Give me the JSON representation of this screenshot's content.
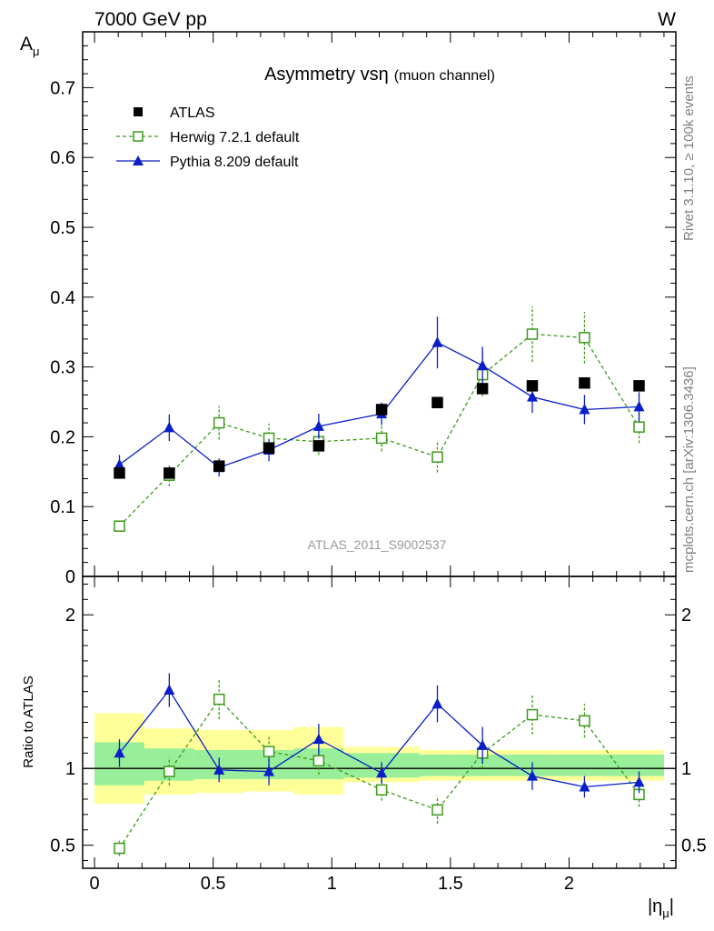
{
  "header": {
    "left": "7000 GeV pp",
    "right": "W"
  },
  "side_text": {
    "upper": "Rivet 3.1.10, ≥ 100k events",
    "lower": "mcplots.cern.ch [arXiv:1306.3436]"
  },
  "chart_data": [
    {
      "type": "scatter",
      "title": "Asymmetry vs",
      "title_symbol": "η",
      "title_suffix": "(muon channel)",
      "ylabel": "A",
      "ylabel_sub": "μ",
      "watermark": "ATLAS_2011_S9002537",
      "ylim": [
        0,
        0.78
      ],
      "xlim": [
        -0.05,
        2.45
      ],
      "yticks": [
        "0",
        "0.1",
        "0.2",
        "0.3",
        "0.4",
        "0.5",
        "0.6",
        "0.7"
      ],
      "legend_position": "top-left",
      "series": [
        {
          "name": "ATLAS",
          "style": "square-filled",
          "color": "#000000",
          "x": [
            0.105,
            0.315,
            0.525,
            0.735,
            0.945,
            1.21,
            1.445,
            1.635,
            1.845,
            2.065,
            2.295
          ],
          "y": [
            0.148,
            0.148,
            0.158,
            0.184,
            0.187,
            0.239,
            0.249,
            0.269,
            0.273,
            0.277,
            0.273
          ],
          "err": [
            0.005,
            0.005,
            0.005,
            0.005,
            0.006,
            0.006,
            0.005,
            0.005,
            0.006,
            0.006,
            0.006
          ]
        },
        {
          "name": "Herwig 7.2.1 default",
          "style": "square-open-dashed",
          "color": "#3a9a1a",
          "x": [
            0.105,
            0.315,
            0.525,
            0.735,
            0.945,
            1.21,
            1.445,
            1.635,
            1.845,
            2.065,
            2.295
          ],
          "y": [
            0.072,
            0.145,
            0.22,
            0.198,
            0.193,
            0.198,
            0.171,
            0.289,
            0.347,
            0.342,
            0.214
          ],
          "err": [
            0.004,
            0.016,
            0.024,
            0.021,
            0.019,
            0.019,
            0.022,
            0.031,
            0.04,
            0.037,
            0.023
          ]
        },
        {
          "name": "Pythia 8.209 default",
          "style": "triangle-filled",
          "color": "#0a1fc8",
          "x": [
            0.105,
            0.315,
            0.525,
            0.735,
            0.945,
            1.21,
            1.445,
            1.635,
            1.845,
            2.065,
            2.295
          ],
          "y": [
            0.16,
            0.213,
            0.156,
            0.181,
            0.215,
            0.233,
            0.335,
            0.302,
            0.257,
            0.239,
            0.243
          ],
          "err": [
            0.014,
            0.019,
            0.013,
            0.016,
            0.018,
            0.016,
            0.037,
            0.027,
            0.023,
            0.021,
            0.021
          ]
        }
      ]
    },
    {
      "type": "scatter",
      "ylabel": "Ratio to ATLAS",
      "xlabel": "|η",
      "xlabel_sub": "μ",
      "xlabel_end": "|",
      "ylim": [
        0.35,
        2.25
      ],
      "xlim": [
        -0.05,
        2.45
      ],
      "yticks": [
        {
          "v": 0.5,
          "label": "0.5"
        },
        {
          "v": 1,
          "label": "1"
        },
        {
          "v": 2,
          "label": "2"
        }
      ],
      "xticks": [
        {
          "v": 0,
          "label": "0"
        },
        {
          "v": 0.5,
          "label": "0.5"
        },
        {
          "v": 1,
          "label": "1"
        },
        {
          "v": 1.5,
          "label": "1.5"
        },
        {
          "v": 2,
          "label": "2"
        }
      ],
      "bands": {
        "edges": [
          0.0,
          0.21,
          0.42,
          0.63,
          0.84,
          1.05,
          1.37,
          1.52,
          1.74,
          1.95,
          2.18,
          2.4
        ],
        "inner": [
          [
            0.89,
            1.17
          ],
          [
            0.92,
            1.13
          ],
          [
            0.93,
            1.12
          ],
          [
            0.93,
            1.12
          ],
          [
            0.93,
            1.13
          ],
          [
            0.94,
            1.1
          ],
          [
            0.95,
            1.09
          ],
          [
            0.95,
            1.09
          ],
          [
            0.95,
            1.09
          ],
          [
            0.95,
            1.09
          ],
          [
            0.95,
            1.09
          ]
        ],
        "outer": [
          [
            0.77,
            1.36
          ],
          [
            0.83,
            1.26
          ],
          [
            0.84,
            1.25
          ],
          [
            0.85,
            1.25
          ],
          [
            0.83,
            1.27
          ],
          [
            0.91,
            1.14
          ],
          [
            0.92,
            1.12
          ],
          [
            0.92,
            1.12
          ],
          [
            0.92,
            1.12
          ],
          [
            0.92,
            1.12
          ],
          [
            0.92,
            1.12
          ]
        ],
        "inner_color": "#99ee99",
        "outer_color": "#ffff99"
      },
      "series": [
        {
          "name": "Herwig 7.2.1 default",
          "x": [
            0.105,
            0.315,
            0.525,
            0.735,
            0.945,
            1.21,
            1.445,
            1.635,
            1.845,
            2.065,
            2.295
          ],
          "y": [
            0.48,
            0.98,
            1.45,
            1.11,
            1.05,
            0.86,
            0.73,
            1.1,
            1.35,
            1.31,
            0.83
          ],
          "err": [
            0.05,
            0.09,
            0.13,
            0.1,
            0.09,
            0.07,
            0.09,
            0.1,
            0.13,
            0.11,
            0.08
          ]
        },
        {
          "name": "Pythia 8.209 default",
          "x": [
            0.105,
            0.315,
            0.525,
            0.735,
            0.945,
            1.21,
            1.445,
            1.635,
            1.845,
            2.065,
            2.295
          ],
          "y": [
            1.1,
            1.51,
            0.99,
            0.98,
            1.19,
            0.97,
            1.42,
            1.15,
            0.95,
            0.88,
            0.91
          ],
          "err": [
            0.09,
            0.11,
            0.08,
            0.09,
            0.1,
            0.07,
            0.12,
            0.12,
            0.09,
            0.07,
            0.07
          ]
        }
      ]
    }
  ]
}
